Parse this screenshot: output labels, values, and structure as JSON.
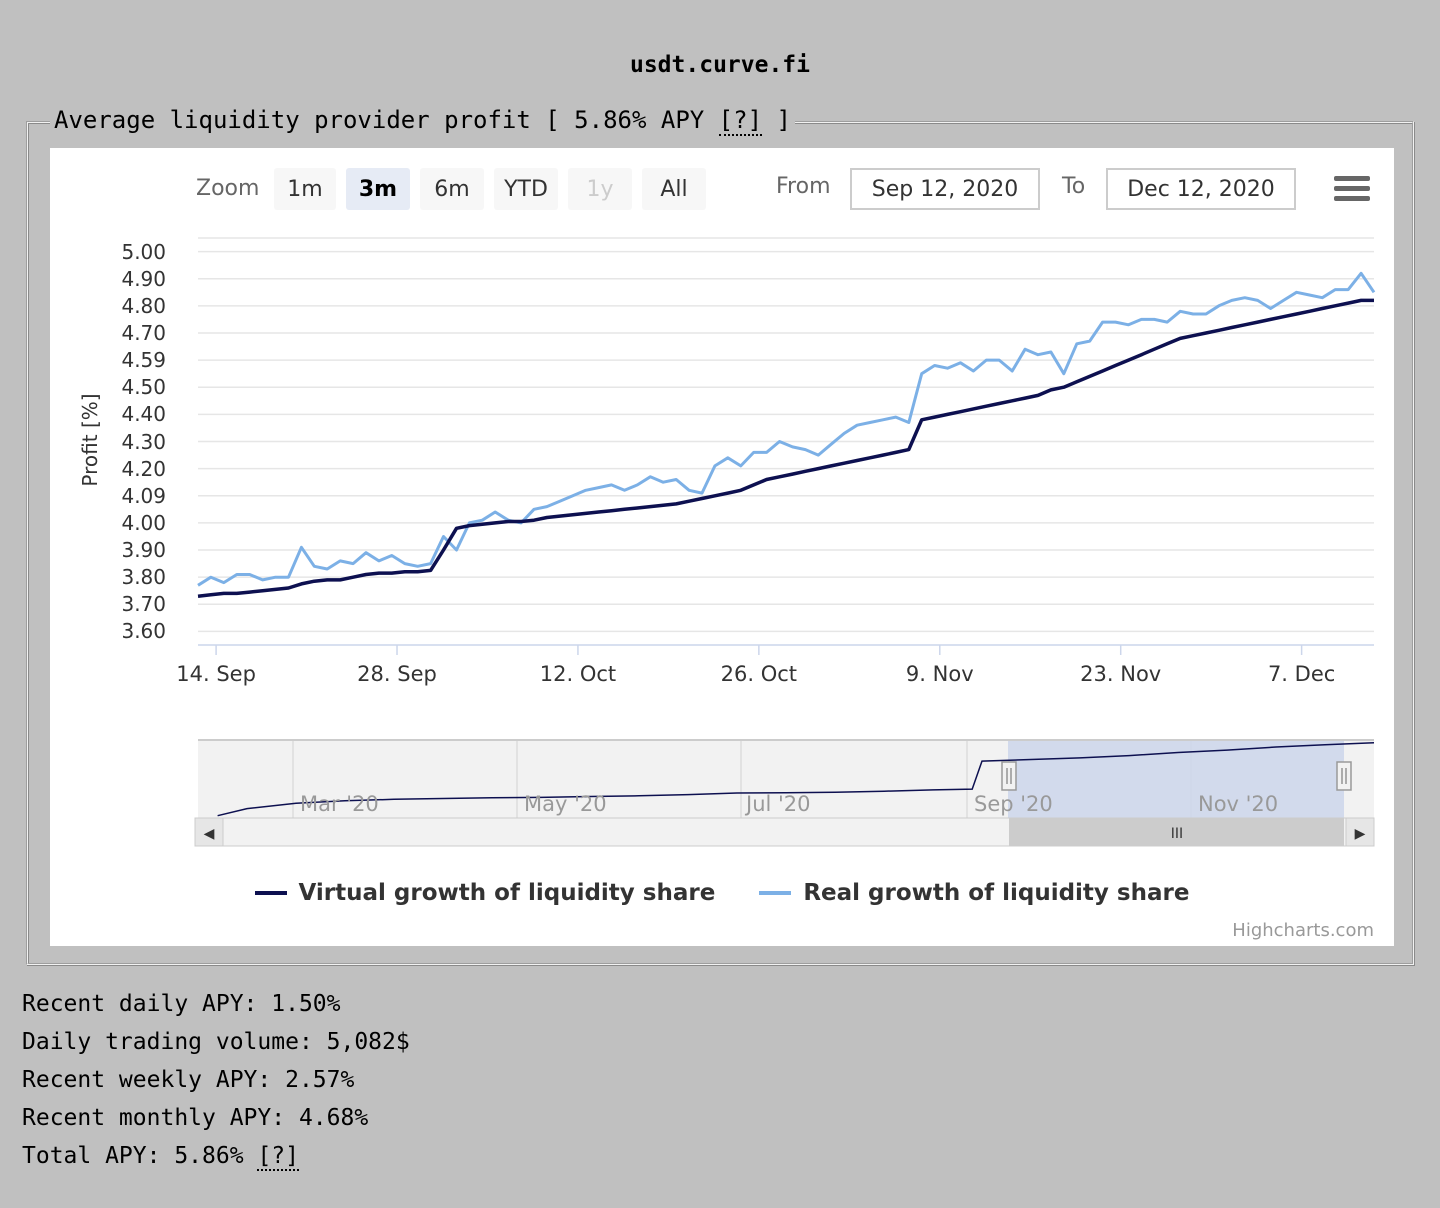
{
  "page": {
    "site_title": "usdt.curve.fi",
    "fieldset_legend_prefix": "Average liquidity provider profit [ ",
    "apy_value": "5.86% APY",
    "help_text": "[?]",
    "fieldset_legend_suffix": " ]"
  },
  "toolbar": {
    "zoom_label": "Zoom",
    "buttons": [
      "1m",
      "3m",
      "6m",
      "YTD",
      "1y",
      "All"
    ],
    "active_button": "3m",
    "disabled_button": "1y",
    "from_label": "From",
    "from_value": "Sep 12, 2020",
    "to_label": "To",
    "to_value": "Dec 12, 2020"
  },
  "navigator": {
    "labels": [
      "Mar '20",
      "May '20",
      "Jul '20",
      "Sep '20",
      "Nov '20"
    ],
    "scroll_left": "◀",
    "scroll_right": "▶",
    "scroll_grip": "III"
  },
  "credits": "Highcharts.com",
  "colors": {
    "virtual": "#0d1050",
    "real": "#7cb0e6",
    "navigator_fill": "#ccd6eb"
  },
  "chart_data": {
    "type": "line",
    "title": "",
    "xlabel": "",
    "ylabel": "Profit [%]",
    "ylim": [
      3.55,
      5.05
    ],
    "y_ticks": [
      "5.00",
      "4.90",
      "4.80",
      "4.70",
      "4.59",
      "4.50",
      "4.40",
      "4.30",
      "4.20",
      "4.09",
      "4.00",
      "3.90",
      "3.80",
      "3.70",
      "3.60"
    ],
    "x_ticks": [
      "14. Sep",
      "28. Sep",
      "12. Oct",
      "26. Oct",
      "9. Nov",
      "23. Nov",
      "7. Dec"
    ],
    "x_range_days": [
      0,
      91
    ],
    "x_tick_days": [
      1.4,
      15.4,
      29.4,
      43.4,
      57.4,
      71.4,
      85.4
    ],
    "series": [
      {
        "name": "Virtual growth of liquidity share",
        "x": [
          0,
          1,
          2,
          3,
          4,
          5,
          6,
          7,
          8,
          9,
          10,
          11,
          12,
          13,
          14,
          15,
          16,
          17,
          18,
          19,
          20,
          21,
          22,
          23,
          24,
          25,
          26,
          27,
          28,
          29,
          30,
          31,
          32,
          33,
          34,
          35,
          36,
          37,
          38,
          39,
          40,
          41,
          42,
          43,
          44,
          45,
          46,
          47,
          48,
          49,
          50,
          51,
          52,
          53,
          54,
          55,
          56,
          57,
          58,
          59,
          60,
          61,
          62,
          63,
          64,
          65,
          66,
          67,
          68,
          69,
          70,
          71,
          72,
          73,
          74,
          75,
          76,
          77,
          78,
          79,
          80,
          81,
          82,
          83,
          84,
          85,
          86,
          87,
          88,
          89,
          90,
          91
        ],
        "values": [
          3.73,
          3.735,
          3.74,
          3.74,
          3.745,
          3.75,
          3.755,
          3.76,
          3.775,
          3.785,
          3.79,
          3.79,
          3.8,
          3.81,
          3.815,
          3.815,
          3.82,
          3.82,
          3.825,
          3.9,
          3.98,
          3.99,
          3.995,
          4.0,
          4.005,
          4.005,
          4.01,
          4.02,
          4.025,
          4.03,
          4.035,
          4.04,
          4.045,
          4.05,
          4.055,
          4.06,
          4.065,
          4.07,
          4.08,
          4.09,
          4.1,
          4.11,
          4.12,
          4.14,
          4.16,
          4.17,
          4.18,
          4.19,
          4.2,
          4.21,
          4.22,
          4.23,
          4.24,
          4.25,
          4.26,
          4.27,
          4.38,
          4.39,
          4.4,
          4.41,
          4.42,
          4.43,
          4.44,
          4.45,
          4.46,
          4.47,
          4.49,
          4.5,
          4.52,
          4.54,
          4.56,
          4.58,
          4.6,
          4.62,
          4.64,
          4.66,
          4.68,
          4.69,
          4.7,
          4.71,
          4.72,
          4.73,
          4.74,
          4.75,
          4.76,
          4.77,
          4.78,
          4.79,
          4.8,
          4.81,
          4.82,
          4.82
        ]
      },
      {
        "name": "Real growth of liquidity share",
        "x": [
          0,
          1,
          2,
          3,
          4,
          5,
          6,
          7,
          8,
          9,
          10,
          11,
          12,
          13,
          14,
          15,
          16,
          17,
          18,
          19,
          20,
          21,
          22,
          23,
          24,
          25,
          26,
          27,
          28,
          29,
          30,
          31,
          32,
          33,
          34,
          35,
          36,
          37,
          38,
          39,
          40,
          41,
          42,
          43,
          44,
          45,
          46,
          47,
          48,
          49,
          50,
          51,
          52,
          53,
          54,
          55,
          56,
          57,
          58,
          59,
          60,
          61,
          62,
          63,
          64,
          65,
          66,
          67,
          68,
          69,
          70,
          71,
          72,
          73,
          74,
          75,
          76,
          77,
          78,
          79,
          80,
          81,
          82,
          83,
          84,
          85,
          86,
          87,
          88,
          89,
          90,
          91
        ],
        "values": [
          3.77,
          3.8,
          3.78,
          3.81,
          3.81,
          3.79,
          3.8,
          3.8,
          3.91,
          3.84,
          3.83,
          3.86,
          3.85,
          3.89,
          3.86,
          3.88,
          3.85,
          3.84,
          3.85,
          3.95,
          3.9,
          4.0,
          4.01,
          4.04,
          4.01,
          4.0,
          4.05,
          4.06,
          4.08,
          4.1,
          4.12,
          4.13,
          4.14,
          4.12,
          4.14,
          4.17,
          4.15,
          4.16,
          4.12,
          4.11,
          4.21,
          4.24,
          4.21,
          4.26,
          4.26,
          4.3,
          4.28,
          4.27,
          4.25,
          4.29,
          4.33,
          4.36,
          4.37,
          4.38,
          4.39,
          4.37,
          4.55,
          4.58,
          4.57,
          4.59,
          4.56,
          4.6,
          4.6,
          4.56,
          4.64,
          4.62,
          4.63,
          4.55,
          4.66,
          4.67,
          4.74,
          4.74,
          4.73,
          4.75,
          4.75,
          4.74,
          4.78,
          4.77,
          4.77,
          4.8,
          4.82,
          4.83,
          4.82,
          4.79,
          4.82,
          4.85,
          4.84,
          4.83,
          4.86,
          4.86,
          4.92,
          4.85
        ]
      }
    ],
    "navigator_series": {
      "x_months": [
        0.2,
        0.5,
        1,
        1.5,
        2,
        2.5,
        3,
        3.5,
        4,
        4.5,
        5,
        5.5,
        6,
        6.5,
        7,
        7.5,
        7.9,
        8.0,
        8.5,
        9,
        9.5,
        10,
        10.5,
        11,
        11.5,
        12
      ],
      "values": [
        0.15,
        0.6,
        0.95,
        1.1,
        1.2,
        1.25,
        1.3,
        1.32,
        1.38,
        1.42,
        1.5,
        1.6,
        1.62,
        1.65,
        1.72,
        1.8,
        1.85,
        3.65,
        3.75,
        3.85,
        4.0,
        4.2,
        4.35,
        4.55,
        4.7,
        4.82
      ],
      "ylim": [
        0,
        5
      ]
    }
  },
  "stats": [
    {
      "label": "Recent daily APY: ",
      "value": "1.50%"
    },
    {
      "label": "Daily trading volume: ",
      "value": "5,082$"
    },
    {
      "label": "Recent weekly APY: ",
      "value": "2.57%"
    },
    {
      "label": "Recent monthly APY: ",
      "value": "4.68%"
    },
    {
      "label": "Total APY: ",
      "value": "5.86%"
    }
  ],
  "stats_help_text": "[?]"
}
